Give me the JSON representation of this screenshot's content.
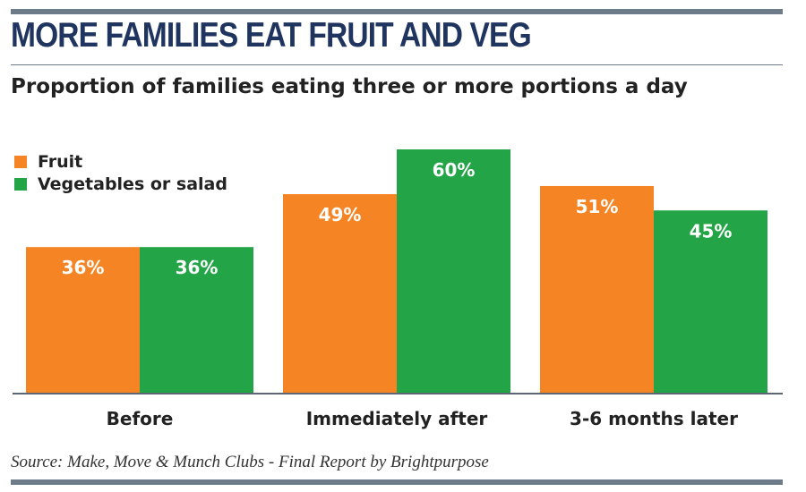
{
  "header": {
    "title": "MORE FAMILIES EAT FRUIT AND VEG",
    "subtitle": "Proportion of families eating three or more portions a day"
  },
  "source": "Source: Make, Move & Munch Clubs - Final Report by Brightpurpose",
  "chart_data": {
    "type": "bar",
    "title": "MORE FAMILIES EAT FRUIT AND VEG",
    "subtitle": "Proportion of families eating three or more portions a day",
    "categories": [
      "Before",
      "Immediately after",
      "3-6 months later"
    ],
    "series": [
      {
        "name": "Fruit",
        "color": "#f58524",
        "values": [
          36,
          49,
          51
        ],
        "labels": [
          "36%",
          "49%",
          "51%"
        ]
      },
      {
        "name": "Vegetables or salad",
        "color": "#22a447",
        "values": [
          36,
          60,
          45
        ],
        "labels": [
          "36%",
          "60%",
          "45%"
        ]
      }
    ],
    "unit": "%",
    "ylim": [
      0,
      60
    ],
    "grid": false,
    "legend": "top-left",
    "xlabel": "",
    "ylabel": ""
  }
}
